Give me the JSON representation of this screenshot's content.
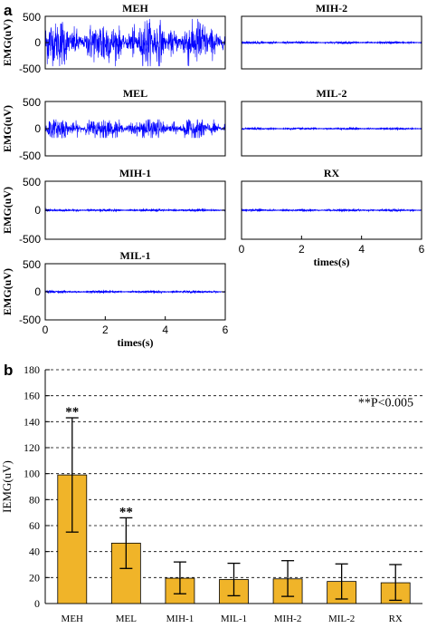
{
  "panel_labels": {
    "a": "a",
    "b": "b"
  },
  "chart_data": [
    {
      "type": "line",
      "title": "MEH",
      "ylabel": "EMG(uV)",
      "xlabel": "",
      "ylim": [
        -500,
        500
      ],
      "yticks": [
        -500,
        0,
        500
      ],
      "xlim": [
        0,
        6
      ],
      "xticks": [],
      "signal": {
        "color": "#0000ff",
        "amplitude": 200,
        "peak": 450
      }
    },
    {
      "type": "line",
      "title": "MIH-2",
      "ylabel": "",
      "xlabel": "",
      "ylim": [
        -500,
        500
      ],
      "yticks": [],
      "xlim": [
        0,
        6
      ],
      "xticks": [],
      "signal": {
        "color": "#0000ff",
        "amplitude": 8,
        "peak": 15
      }
    },
    {
      "type": "line",
      "title": "MEL",
      "ylabel": "EMG(uV)",
      "xlabel": "",
      "ylim": [
        -500,
        500
      ],
      "yticks": [
        -500,
        0,
        500
      ],
      "xlim": [
        0,
        6
      ],
      "xticks": [],
      "signal": {
        "color": "#0000ff",
        "amplitude": 90,
        "peak": 170
      }
    },
    {
      "type": "line",
      "title": "MIL-2",
      "ylabel": "",
      "xlabel": "",
      "ylim": [
        -500,
        500
      ],
      "yticks": [],
      "xlim": [
        0,
        6
      ],
      "xticks": [],
      "signal": {
        "color": "#0000ff",
        "amplitude": 7,
        "peak": 12
      }
    },
    {
      "type": "line",
      "title": "MIH-1",
      "ylabel": "EMG(uV)",
      "xlabel": "",
      "ylim": [
        -500,
        500
      ],
      "yticks": [
        -500,
        0,
        500
      ],
      "xlim": [
        0,
        6
      ],
      "xticks": [],
      "signal": {
        "color": "#0000ff",
        "amplitude": 8,
        "peak": 15
      }
    },
    {
      "type": "line",
      "title": "RX",
      "ylabel": "",
      "xlabel": "times(s)",
      "ylim": [
        -500,
        500
      ],
      "yticks": [],
      "xlim": [
        0,
        6
      ],
      "xticks": [
        0,
        2,
        4,
        6
      ],
      "signal": {
        "color": "#0000ff",
        "amplitude": 7,
        "peak": 12
      }
    },
    {
      "type": "line",
      "title": "MIL-1",
      "ylabel": "EMG(uV)",
      "xlabel": "times(s)",
      "ylim": [
        -500,
        500
      ],
      "yticks": [
        -500,
        0,
        500
      ],
      "xlim": [
        0,
        6
      ],
      "xticks": [
        0,
        2,
        4,
        6
      ],
      "signal": {
        "color": "#0000ff",
        "amplitude": 8,
        "peak": 15
      }
    },
    {
      "type": "bar",
      "title": "",
      "xlabel": "",
      "ylabel": "IEMG(uV)",
      "ylim": [
        0,
        180
      ],
      "yticks": [
        0,
        20,
        40,
        60,
        80,
        100,
        120,
        140,
        160,
        180
      ],
      "grid": true,
      "categories": [
        "MEH",
        "MEL",
        "MIH-1",
        "MIL-1",
        "MIH-2",
        "MIL-2",
        "RX"
      ],
      "values": [
        99,
        46.5,
        19.5,
        18.5,
        19,
        17,
        16
      ],
      "error_upper": [
        143,
        66,
        32,
        31,
        33,
        30.5,
        30
      ],
      "error_lower": [
        55,
        27,
        7.5,
        6,
        5.5,
        3.5,
        2.5
      ],
      "significance": [
        "**",
        "**",
        "",
        "",
        "",
        "",
        ""
      ],
      "annotation": "**P<0.005",
      "bar_color": "#f0b429"
    }
  ]
}
